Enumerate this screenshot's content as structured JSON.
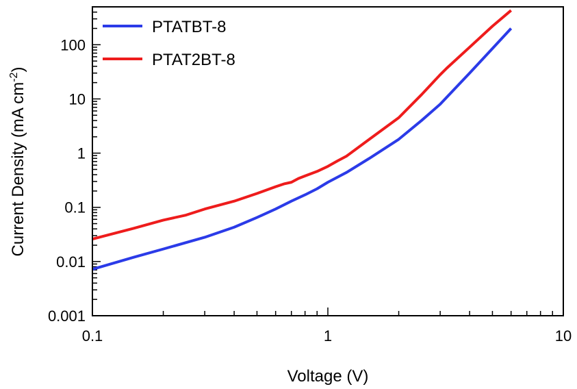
{
  "chart_data": {
    "type": "line",
    "xlabel": "Voltage (V)",
    "ylabel": "Current Density (mA cm",
    "ylabel_sup": "-2",
    "ylabel_close": ")",
    "x_scale": "log",
    "y_scale": "log",
    "xlim": [
      0.1,
      10
    ],
    "ylim": [
      0.001,
      500
    ],
    "x_ticks": [
      0.1,
      1,
      10
    ],
    "x_tick_labels": [
      "0.1",
      "1",
      "10"
    ],
    "y_ticks": [
      0.001,
      0.01,
      0.1,
      1,
      10,
      100
    ],
    "y_tick_labels": [
      "0.001",
      "0.01",
      "0.1",
      "1",
      "10",
      "100"
    ],
    "grid": false,
    "legend_position": "top-left",
    "series": [
      {
        "name": "PTATBT-8",
        "color": "#2b3be8",
        "x": [
          0.1,
          0.15,
          0.2,
          0.3,
          0.4,
          0.5,
          0.6,
          0.7,
          0.8,
          0.9,
          1.0,
          1.2,
          1.5,
          2.0,
          2.5,
          3.0,
          4.0,
          5.0,
          6.0
        ],
        "y": [
          0.0072,
          0.012,
          0.017,
          0.028,
          0.043,
          0.065,
          0.093,
          0.13,
          0.17,
          0.22,
          0.29,
          0.44,
          0.8,
          1.8,
          4.0,
          8.0,
          30.0,
          85.0,
          200.0
        ]
      },
      {
        "name": "PTAT2BT-8",
        "color": "#ee1c1c",
        "x": [
          0.1,
          0.15,
          0.2,
          0.25,
          0.3,
          0.4,
          0.5,
          0.6,
          0.65,
          0.7,
          0.75,
          0.8,
          0.9,
          1.0,
          1.1,
          1.2,
          1.5,
          2.0,
          2.5,
          3.0,
          3.2,
          4.0,
          5.0,
          6.0
        ],
        "y": [
          0.026,
          0.041,
          0.058,
          0.072,
          0.093,
          0.13,
          0.18,
          0.24,
          0.27,
          0.29,
          0.34,
          0.38,
          0.46,
          0.57,
          0.72,
          0.88,
          1.8,
          4.5,
          12.0,
          28.0,
          37.0,
          90.0,
          220.0,
          430.0
        ]
      }
    ]
  }
}
